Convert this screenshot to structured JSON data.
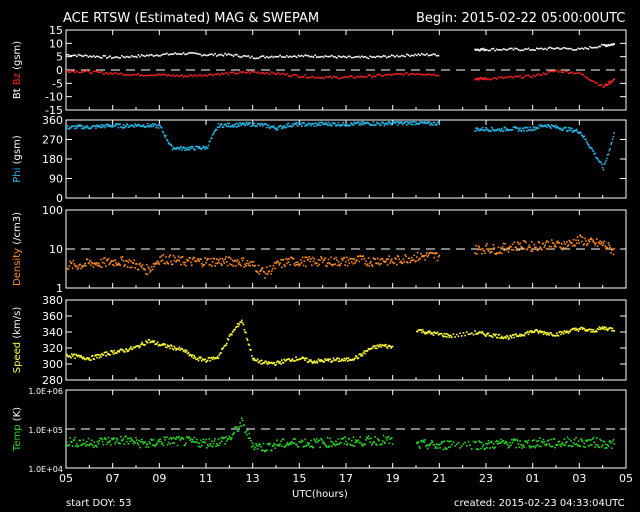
{
  "header": {
    "title": "ACE RTSW (Estimated) MAG & SWEPAM",
    "begin": "Begin: 2015-02-22 05:00:00UTC"
  },
  "footer": {
    "start_doy": "start DOY:  53",
    "created": "created: 2015-02-23 04:33:04UTC",
    "xlabel": "UTC(hours)"
  },
  "colors": {
    "bt": "#ffffff",
    "bz": "#ff2020",
    "phi": "#22b8e8",
    "density": "#ff8c1a",
    "speed": "#ffff33",
    "temp": "#22dd22",
    "axis": "#ffffff"
  },
  "chart_data": [
    {
      "type": "line",
      "name": "mag",
      "ylabel_parts": [
        "Bt",
        "Bz",
        "(gsm)"
      ],
      "ylim": [
        -15,
        15
      ],
      "yticks": [
        "15",
        "10",
        "5",
        "0",
        "-5",
        "-10",
        "-15"
      ],
      "ytick_values": [
        15,
        10,
        5,
        0,
        -5,
        -10,
        -15
      ],
      "dashed_at": [
        0
      ],
      "x_hours": [
        0,
        1,
        2,
        3,
        4,
        5,
        6,
        7,
        8,
        9,
        10,
        11,
        12,
        13,
        14,
        15,
        16,
        16.5,
        17.5,
        18,
        19,
        20,
        21,
        22,
        23,
        23.5
      ],
      "series": [
        {
          "key": "bt",
          "values": [
            6,
            5.5,
            5,
            5.5,
            6,
            6.5,
            6,
            6,
            5,
            5.5,
            5.5,
            5.5,
            5,
            5,
            5.5,
            6,
            6,
            null,
            8,
            8,
            8,
            8,
            8.5,
            8,
            9.5,
            10
          ]
        },
        {
          "key": "bz",
          "values": [
            0,
            -0.5,
            -1,
            -1.5,
            -1.5,
            -2,
            -1.5,
            -1,
            -0.5,
            -1,
            -2,
            -2.5,
            -2.5,
            -2,
            -1.5,
            -1,
            -1.5,
            null,
            -3,
            -3,
            -2.5,
            -2,
            0,
            -1,
            -6,
            -3
          ]
        }
      ]
    },
    {
      "type": "scatter",
      "name": "phi",
      "ylabel_parts": [
        "Phi",
        "(gsm)"
      ],
      "ylim": [
        0,
        360
      ],
      "yticks": [
        "360",
        "270",
        "180",
        "90",
        "0"
      ],
      "ytick_values": [
        360,
        270,
        180,
        90,
        0
      ],
      "dashed_at": [],
      "x_hours": [
        0,
        0.5,
        1,
        1.5,
        2,
        2.5,
        3,
        3.5,
        4,
        4.5,
        5,
        5.5,
        6,
        6.5,
        7,
        7.5,
        8,
        8.5,
        9,
        9.5,
        10,
        10.5,
        11,
        11.5,
        12,
        12.5,
        13,
        13.5,
        14,
        14.5,
        15,
        15.5,
        16,
        16.5,
        17.5,
        18,
        18.5,
        19,
        19.5,
        20,
        20.5,
        21,
        21.5,
        22,
        22.5,
        23,
        23.5
      ],
      "series": [
        {
          "key": "phi",
          "values": [
            328,
            332,
            330,
            335,
            338,
            336,
            340,
            338,
            334,
            236,
            232,
            234,
            236,
            338,
            340,
            342,
            344,
            338,
            326,
            340,
            344,
            342,
            346,
            345,
            344,
            346,
            348,
            346,
            350,
            348,
            352,
            346,
            350,
            null,
            320,
            322,
            318,
            324,
            320,
            325,
            340,
            330,
            320,
            310,
            230,
            140,
            310
          ]
        }
      ]
    },
    {
      "type": "scatter",
      "name": "density",
      "ylabel_parts": [
        "Density",
        "(/cm3)"
      ],
      "ylim": [
        1,
        100
      ],
      "log": true,
      "yticks": [
        "100",
        "10",
        "1"
      ],
      "ytick_values": [
        100,
        10,
        1
      ],
      "dashed_at": [
        10
      ],
      "x_hours": [
        0,
        0.5,
        1,
        1.5,
        2,
        2.5,
        3,
        3.5,
        4,
        4.5,
        5,
        5.5,
        6,
        6.5,
        7,
        7.5,
        8,
        8.5,
        9,
        9.5,
        10,
        10.5,
        11,
        11.5,
        12,
        12.5,
        13,
        13.5,
        14,
        14.5,
        15,
        15.5,
        16,
        16.5,
        17.5,
        18,
        18.5,
        19,
        19.5,
        20,
        20.5,
        21,
        21.5,
        22,
        22.5,
        23,
        23.5
      ],
      "series": [
        {
          "key": "density",
          "values": [
            4,
            4,
            4.5,
            4.5,
            5,
            5,
            4,
            3,
            6,
            5.5,
            5,
            5,
            5,
            5,
            5,
            5,
            4,
            2.5,
            4,
            5,
            5,
            5,
            5,
            5,
            5,
            5.5,
            5,
            5.5,
            5,
            6,
            6.5,
            7,
            7,
            null,
            10,
            11,
            10,
            12,
            13,
            12,
            14,
            13,
            14,
            18,
            15,
            14,
            9
          ]
        }
      ]
    },
    {
      "type": "scatter",
      "name": "speed",
      "ylabel_parts": [
        "Speed",
        "(km/s)"
      ],
      "ylim": [
        280,
        380
      ],
      "yticks": [
        "380",
        "360",
        "340",
        "320",
        "300",
        "280"
      ],
      "ytick_values": [
        380,
        360,
        340,
        320,
        300,
        280
      ],
      "dashed_at": [],
      "x_hours": [
        0,
        0.5,
        1,
        1.5,
        2,
        2.5,
        3,
        3.5,
        4,
        4.5,
        5,
        5.5,
        6,
        6.5,
        7,
        7.5,
        8,
        8.5,
        9,
        9.5,
        10,
        10.5,
        11,
        11.5,
        12,
        12.5,
        13,
        13.5,
        14,
        14.5,
        15,
        15.5,
        16,
        16.5,
        17.5,
        18,
        18.5,
        19,
        19.5,
        20,
        20.5,
        21,
        21.5,
        22,
        22.5,
        23,
        23.5
      ],
      "series": [
        {
          "key": "speed",
          "values": [
            312,
            310,
            308,
            312,
            316,
            318,
            322,
            330,
            325,
            322,
            318,
            308,
            306,
            310,
            336,
            356,
            306,
            302,
            302,
            306,
            308,
            304,
            305,
            306,
            306,
            310,
            320,
            324,
            322,
            null,
            344,
            340,
            338,
            336,
            340,
            338,
            336,
            334,
            338,
            342,
            340,
            338,
            342,
            345,
            342,
            346,
            344
          ]
        }
      ]
    },
    {
      "type": "scatter",
      "name": "temp",
      "ylabel_parts": [
        "Temp",
        "(K)"
      ],
      "ylim": [
        10000,
        1000000
      ],
      "log": true,
      "yticks": [
        "1.0E+06",
        "1.0E+05",
        "1.0E+04"
      ],
      "ytick_values": [
        1000000,
        100000,
        10000
      ],
      "dashed_at": [
        100000
      ],
      "x_hours": [
        0,
        0.5,
        1,
        1.5,
        2,
        2.5,
        3,
        3.5,
        4,
        4.5,
        5,
        5.5,
        6,
        6.5,
        7,
        7.5,
        8,
        8.5,
        9,
        9.5,
        10,
        10.5,
        11,
        11.5,
        12,
        12.5,
        13,
        13.5,
        14,
        14.5,
        15,
        15.5,
        16,
        16.5,
        17.5,
        18,
        18.5,
        19,
        19.5,
        20,
        20.5,
        21,
        21.5,
        22,
        22.5,
        23,
        23.5
      ],
      "series": [
        {
          "key": "temp",
          "values": [
            50000,
            48000,
            45000,
            50000,
            52000,
            55000,
            48000,
            42000,
            50000,
            52000,
            50000,
            48000,
            46000,
            50000,
            60000,
            150000,
            40000,
            35000,
            42000,
            45000,
            48000,
            45000,
            47000,
            48000,
            50000,
            50000,
            52000,
            55000,
            50000,
            null,
            40000,
            42000,
            38000,
            45000,
            42000,
            40000,
            44000,
            46000,
            42000,
            45000,
            48000,
            44000,
            50000,
            46000,
            48000,
            45000,
            42000
          ]
        }
      ]
    }
  ],
  "x_axis": {
    "tick_labels": [
      "05",
      "07",
      "09",
      "11",
      "13",
      "15",
      "17",
      "19",
      "21",
      "23",
      "01",
      "03",
      "05"
    ],
    "tick_hours": [
      0,
      2,
      4,
      6,
      8,
      10,
      12,
      14,
      16,
      18,
      20,
      22,
      24
    ],
    "range_hours": [
      0,
      24
    ]
  }
}
